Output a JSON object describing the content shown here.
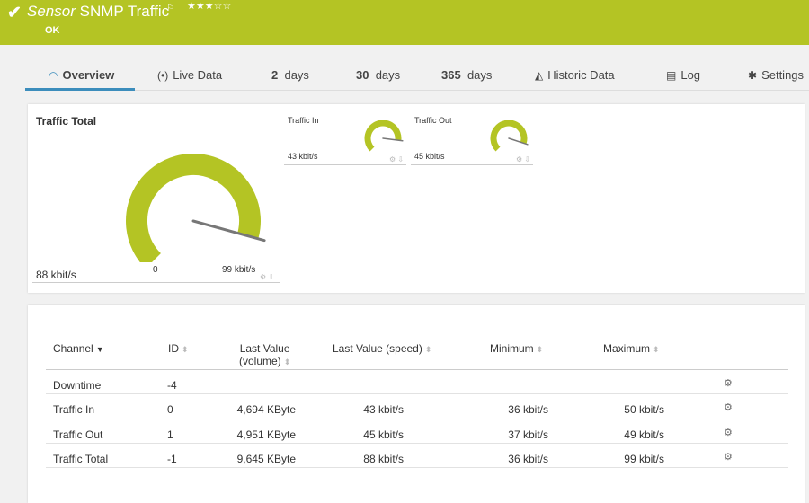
{
  "header": {
    "title_italic": "Sensor",
    "title_rest": "SNMP Traffic",
    "stars": "★★★☆☆",
    "status": "OK",
    "bg_color": "#b4c424"
  },
  "tabs": [
    {
      "label": "Overview",
      "icon": "overview-gauge-icon",
      "active": true
    },
    {
      "label": "Live Data",
      "icon": "live-signal-icon"
    },
    {
      "num": "2",
      "label": "days"
    },
    {
      "num": "30",
      "label": "days"
    },
    {
      "num": "365",
      "label": "days"
    },
    {
      "label": "Historic Data",
      "icon": "chart-icon"
    },
    {
      "label": "Log",
      "icon": "log-icon"
    },
    {
      "label": "Settings",
      "icon": "gear-icon"
    }
  ],
  "gauges": {
    "total": {
      "title": "Traffic Total",
      "value": "88 kbit/s",
      "min_label": "0",
      "max_label": "99 kbit/s",
      "level": 0.89
    },
    "in": {
      "title": "Traffic In",
      "value": "43 kbit/s",
      "level": 0.86
    },
    "out": {
      "title": "Traffic Out",
      "value": "45 kbit/s",
      "level": 0.9
    }
  },
  "table": {
    "headers": {
      "channel": "Channel",
      "id": "ID",
      "last_volume_1": "Last Value",
      "last_volume_2": "(volume)",
      "last_speed": "Last Value (speed)",
      "minimum": "Minimum",
      "maximum": "Maximum"
    },
    "rows": [
      {
        "channel": "Downtime",
        "id": "-4",
        "volume": "",
        "speed": "",
        "min": "",
        "max": ""
      },
      {
        "channel": "Traffic In",
        "id": "0",
        "volume": "4,694 KByte",
        "speed": "43 kbit/s",
        "min": "36 kbit/s",
        "max": "50 kbit/s"
      },
      {
        "channel": "Traffic Out",
        "id": "1",
        "volume": "4,951 KByte",
        "speed": "45 kbit/s",
        "min": "37 kbit/s",
        "max": "49 kbit/s"
      },
      {
        "channel": "Traffic Total",
        "id": "-1",
        "volume": "9,645 KByte",
        "speed": "88 kbit/s",
        "min": "36 kbit/s",
        "max": "99 kbit/s"
      }
    ]
  }
}
